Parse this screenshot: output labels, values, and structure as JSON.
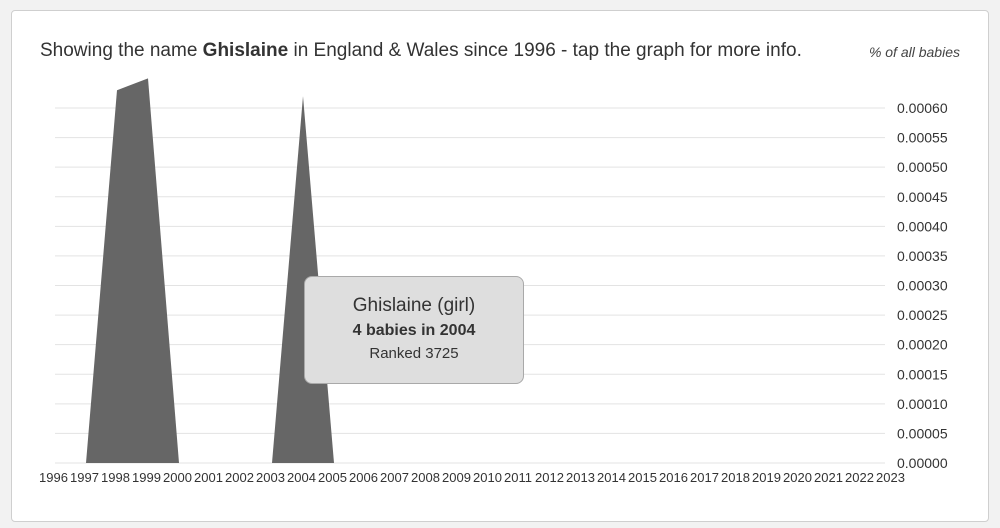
{
  "header": {
    "title_prefix": "Showing the name ",
    "title_name": "Ghislaine",
    "title_suffix": " in England & Wales since 1996 - tap the graph for more info.",
    "unit_label": "% of all babies"
  },
  "tooltip": {
    "name": "Ghislaine (girl)",
    "count": "4 babies in 2004",
    "rank": "Ranked 3725"
  },
  "colors": {
    "area": "#666666",
    "grid": "#e3e3e3",
    "text": "#333333"
  },
  "chart_data": {
    "type": "area",
    "title": "Showing the name Ghislaine in England & Wales since 1996 - tap the graph for more info.",
    "ylabel": "% of all babies",
    "ylim": [
      0,
      0.0006
    ],
    "y_ticks": [
      "0.00060",
      "0.00055",
      "0.00050",
      "0.00045",
      "0.00040",
      "0.00035",
      "0.00030",
      "0.00025",
      "0.00020",
      "0.00015",
      "0.00010",
      "0.00005",
      "0.00000"
    ],
    "x": [
      "1996",
      "1997",
      "1998",
      "1999",
      "2000",
      "2001",
      "2002",
      "2003",
      "2004",
      "2005",
      "2006",
      "2007",
      "2008",
      "2009",
      "2010",
      "2011",
      "2012",
      "2013",
      "2014",
      "2015",
      "2016",
      "2017",
      "2018",
      "2019",
      "2020",
      "2021",
      "2022",
      "2023"
    ],
    "series": [
      {
        "values": [
          0,
          0,
          0.00063,
          0.00065,
          0,
          0,
          0,
          0,
          0.00062,
          0,
          0,
          0,
          0,
          0,
          0,
          0,
          0,
          0,
          0,
          0,
          0,
          0,
          0,
          0,
          0,
          0,
          0,
          0
        ]
      }
    ],
    "grid": true,
    "legend": "none"
  }
}
